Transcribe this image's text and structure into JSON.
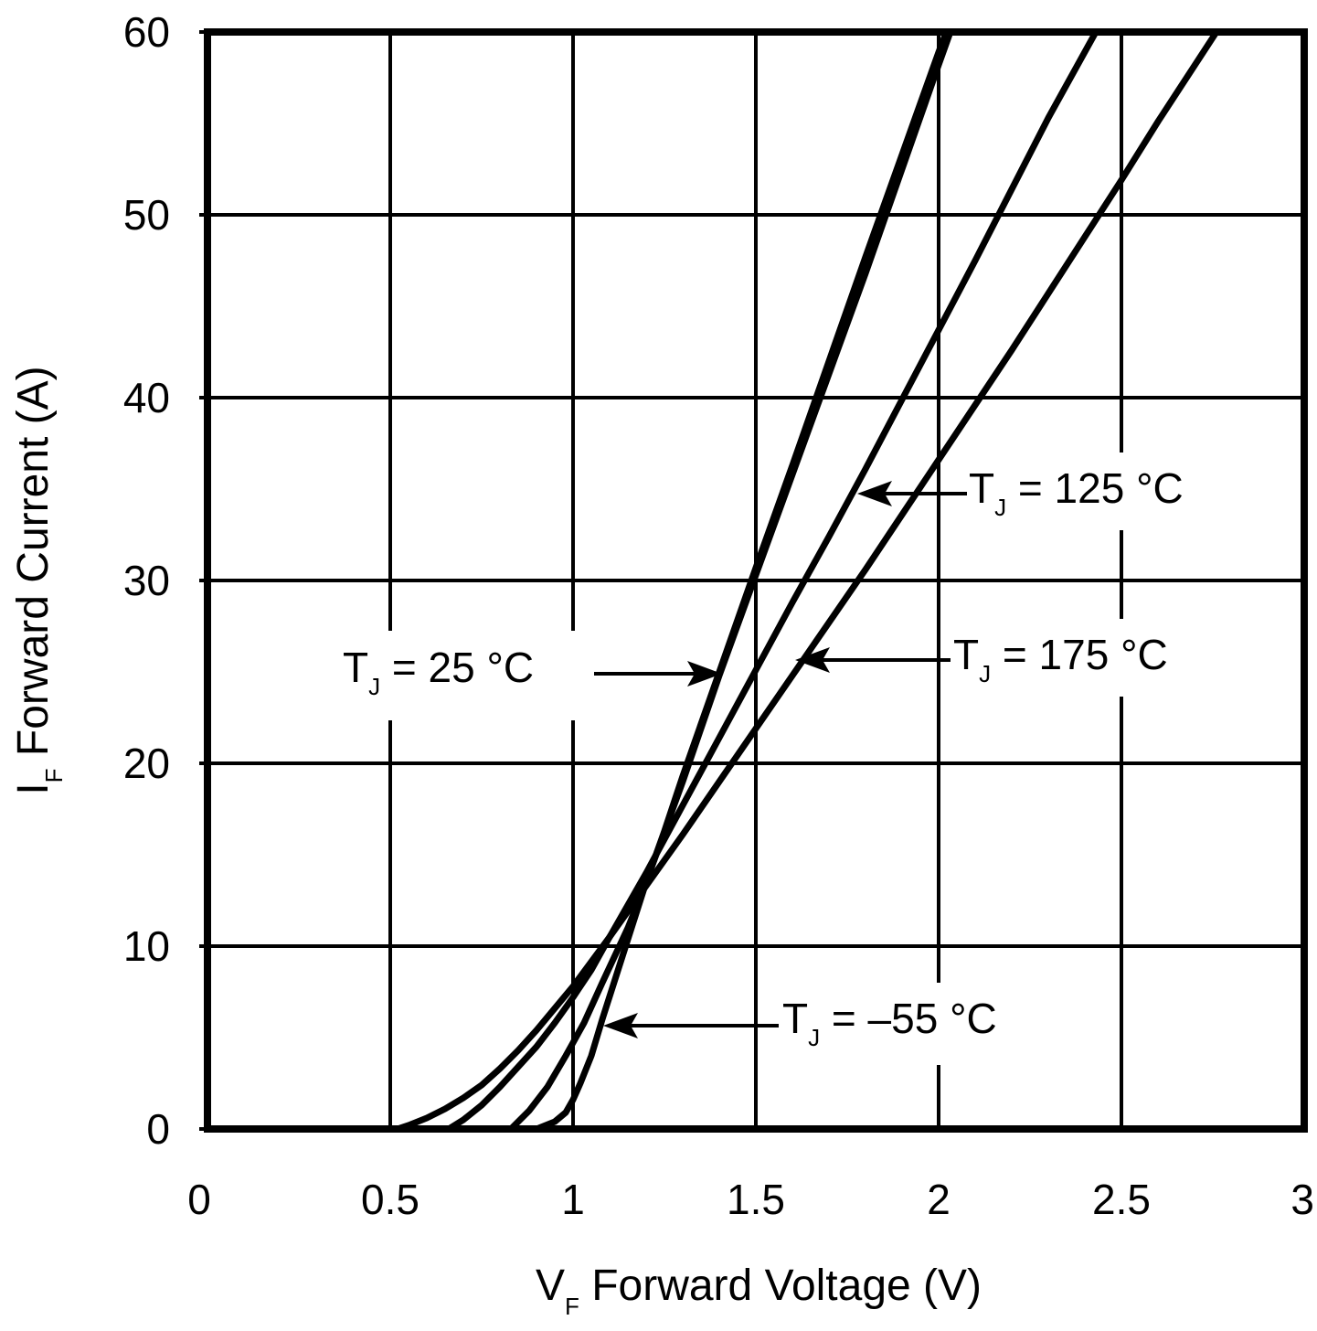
{
  "chart_data": {
    "type": "line",
    "title": "",
    "xlabel": {
      "main": "V",
      "sub": "F",
      "rest": " Forward Voltage (V)"
    },
    "ylabel": {
      "main": "I",
      "sub": "F",
      "rest": " Forward Current (A)"
    },
    "xlim": [
      0,
      3
    ],
    "ylim": [
      0,
      60
    ],
    "x_ticks": [
      0,
      0.5,
      1,
      1.5,
      2,
      2.5,
      3
    ],
    "x_tick_labels": [
      "0",
      "0.5",
      "1",
      "1.5",
      "2",
      "2.5",
      "3"
    ],
    "y_ticks": [
      0,
      10,
      20,
      30,
      40,
      50,
      60
    ],
    "y_tick_labels": [
      "0",
      "10",
      "20",
      "30",
      "40",
      "50",
      "60"
    ],
    "grid": true,
    "series": [
      {
        "name": "TJ = -55 °C",
        "x": [
          0.9,
          0.95,
          0.98,
          1.0,
          1.02,
          1.05,
          1.08,
          1.12,
          1.2,
          1.3,
          1.4,
          1.5,
          1.6,
          1.7,
          1.8,
          1.9,
          2.0,
          2.05
        ],
        "y": [
          0,
          0.4,
          0.9,
          1.6,
          2.5,
          4,
          6,
          8.5,
          13.5,
          19,
          24.8,
          30.3,
          35.8,
          41.3,
          46.8,
          52.5,
          58.2,
          61
        ]
      },
      {
        "name": "TJ = 25 °C",
        "x": [
          0.83,
          0.88,
          0.93,
          0.98,
          1.03,
          1.08,
          1.15,
          1.2,
          1.25,
          1.3,
          1.4,
          1.5,
          1.6,
          1.7,
          1.8,
          1.9,
          2.0,
          2.04
        ],
        "y": [
          0,
          1,
          2.3,
          4,
          5.8,
          8,
          11,
          13.5,
          16.3,
          19.3,
          25,
          30.7,
          36.3,
          42,
          47.7,
          53.3,
          58.9,
          61
        ]
      },
      {
        "name": "TJ = 125 °C",
        "x": [
          0.66,
          0.7,
          0.75,
          0.8,
          0.85,
          0.9,
          0.95,
          1.0,
          1.05,
          1.1,
          1.2,
          1.3,
          1.4,
          1.5,
          1.6,
          1.7,
          1.8,
          1.9,
          2.0,
          2.1,
          2.2,
          2.3,
          2.43
        ],
        "y": [
          0,
          0.5,
          1.3,
          2.3,
          3.4,
          4.5,
          5.8,
          7.2,
          8.7,
          10.5,
          14,
          17.7,
          21.4,
          25.1,
          28.8,
          32.4,
          36.1,
          39.9,
          43.7,
          47.5,
          51.4,
          55.3,
          60
        ]
      },
      {
        "name": "TJ = 175 °C",
        "x": [
          0.52,
          0.55,
          0.6,
          0.65,
          0.7,
          0.75,
          0.8,
          0.85,
          0.9,
          0.95,
          1.0,
          1.1,
          1.2,
          1.3,
          1.4,
          1.5,
          1.6,
          1.7,
          1.8,
          1.9,
          2.0,
          2.1,
          2.2,
          2.3,
          2.4,
          2.5,
          2.6,
          2.76
        ],
        "y": [
          0,
          0.2,
          0.6,
          1.1,
          1.7,
          2.4,
          3.3,
          4.3,
          5.4,
          6.6,
          7.8,
          10.5,
          13.3,
          16.1,
          19,
          21.9,
          24.8,
          27.7,
          30.6,
          33.6,
          36.6,
          39.6,
          42.6,
          45.7,
          48.8,
          51.9,
          55.1,
          60
        ]
      }
    ],
    "annotations": [
      {
        "id": "tj25",
        "t": "T",
        "sub": "J",
        "rest": " = 25 °C"
      },
      {
        "id": "tj125",
        "t": "T",
        "sub": "J",
        "rest": " = 125 °C"
      },
      {
        "id": "tj175",
        "t": "T",
        "sub": "J",
        "rest": " = 175 °C"
      },
      {
        "id": "tjm55",
        "t": "T",
        "sub": "J",
        "rest": " = –55 °C"
      }
    ]
  }
}
